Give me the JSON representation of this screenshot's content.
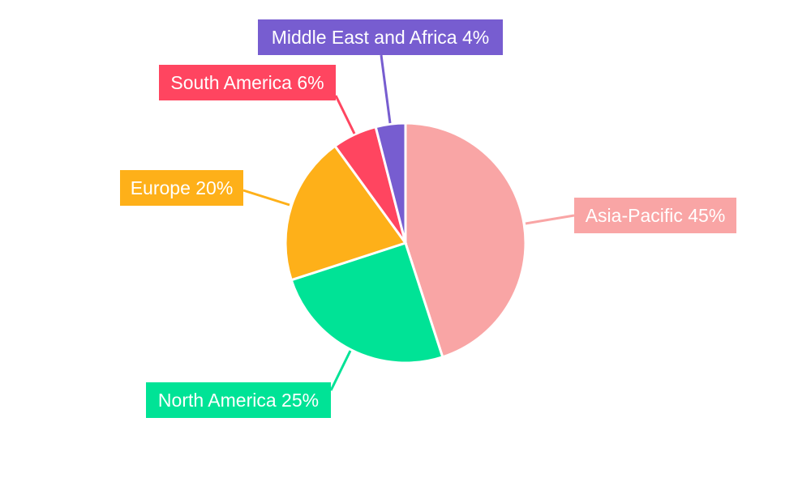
{
  "chart_data": {
    "type": "pie",
    "title": "",
    "categories": [
      "Asia-Pacific",
      "North America",
      "Europe",
      "South America",
      "Middle East and Africa"
    ],
    "values": [
      45,
      25,
      20,
      6,
      4
    ],
    "labels": [
      "Asia-Pacific 45%",
      "North America 25%",
      "Europe 20%",
      "South America 6%",
      "Middle East and Africa 4%"
    ],
    "colors": [
      "#f9a5a5",
      "#00e396",
      "#feb019",
      "#ff4560",
      "#775dd0"
    ],
    "start_angle": "top",
    "direction": "clockwise",
    "legend": "none"
  }
}
